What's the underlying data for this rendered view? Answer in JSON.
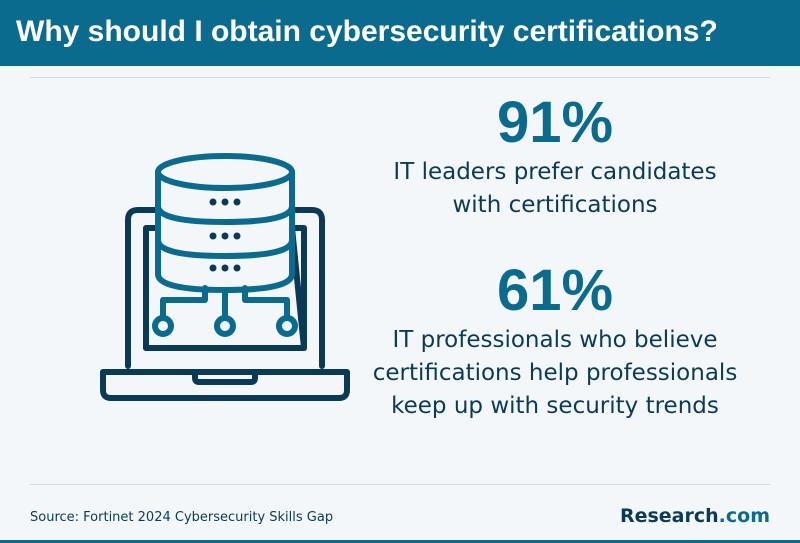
{
  "header": {
    "title": "Why should I obtain cybersecurity certifications?"
  },
  "illustration": {
    "icon": "laptop-database-network-icon"
  },
  "stats": [
    {
      "value": "91%",
      "lines": [
        "IT leaders prefer candidates",
        "with certifications"
      ]
    },
    {
      "value": "61%",
      "lines": [
        "IT professionals who believe",
        "certifications help professionals",
        "keep up with security trends"
      ]
    }
  ],
  "footer": {
    "source": "Source: Fortinet 2024 Cybersecurity Skills Gap",
    "brand_name": "Research",
    "brand_tld": ".com"
  },
  "colors": {
    "header_bg": "#0b6b8f",
    "accent": "#0b6b8f",
    "text_dark": "#0a3a55",
    "background": "#f4f7fa"
  }
}
